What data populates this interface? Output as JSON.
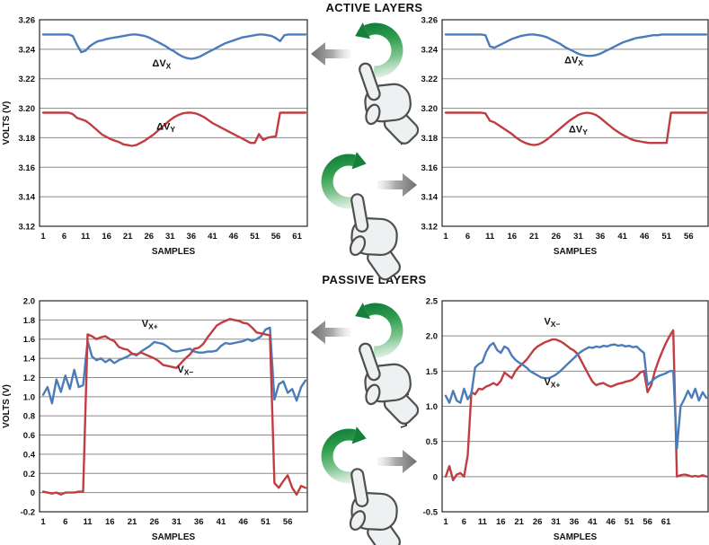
{
  "titles": {
    "active": "ACTIVE LAYERS",
    "passive": "PASSIVE LAYERS"
  },
  "colors": {
    "blue": "#4b7cba",
    "red": "#c03d42",
    "grid": "#8a8a8a",
    "frame": "#262626",
    "text": "#111111",
    "green": "#1d8c43",
    "gray_arrow": "#6e6e6e"
  },
  "gestures": [
    {
      "motion": "rotate-counterclockwise",
      "result_arrow": "left",
      "section": "active"
    },
    {
      "motion": "rotate-clockwise",
      "result_arrow": "right",
      "section": "active"
    },
    {
      "motion": "rotate-counterclockwise",
      "result_arrow": "left",
      "section": "passive"
    },
    {
      "motion": "rotate-clockwise",
      "result_arrow": "right",
      "section": "passive"
    }
  ],
  "chart_data": [
    {
      "id": "active-left",
      "type": "line",
      "section": "ACTIVE LAYERS",
      "xlabel": "SAMPLES",
      "ylabel": "VOLTS (V)",
      "ylim": [
        3.12,
        3.26
      ],
      "grid": "horizontal",
      "legend": "inline-labels",
      "ytick_labels": [
        "3.26",
        "3.24",
        "3.22",
        "3.20",
        "3.18",
        "3.16",
        "3.14",
        "3.12"
      ],
      "ytick_values": [
        3.26,
        3.24,
        3.22,
        3.2,
        3.18,
        3.16,
        3.14,
        3.12
      ],
      "xticks": [
        1,
        6,
        11,
        16,
        21,
        26,
        31,
        36,
        41,
        46,
        51,
        56,
        61
      ],
      "series": [
        {
          "key": "delta-vx",
          "name": "ΔVX",
          "label_base": "ΔV",
          "label_sub": "X",
          "color": "blue",
          "label_at": [
            29,
            3.2285
          ],
          "values": [
            3.25,
            3.25,
            3.25,
            3.25,
            3.25,
            3.25,
            3.25,
            3.249,
            3.243,
            3.238,
            3.239,
            3.242,
            3.244,
            3.2455,
            3.246,
            3.247,
            3.2475,
            3.248,
            3.2485,
            3.249,
            3.2495,
            3.25,
            3.25,
            3.2495,
            3.249,
            3.248,
            3.2465,
            3.245,
            3.2435,
            3.242,
            3.24,
            3.2385,
            3.2365,
            3.235,
            3.234,
            3.2335,
            3.234,
            3.235,
            3.2365,
            3.238,
            3.2395,
            3.241,
            3.2425,
            3.244,
            3.245,
            3.246,
            3.247,
            3.248,
            3.2485,
            3.249,
            3.2495,
            3.25,
            3.25,
            3.2495,
            3.249,
            3.2475,
            3.2455,
            3.2495,
            3.25,
            3.25,
            3.25,
            3.25,
            3.25
          ]
        },
        {
          "key": "delta-vy",
          "name": "ΔVY",
          "label_base": "ΔV",
          "label_sub": "Y",
          "color": "red",
          "label_at": [
            30,
            3.1855
          ],
          "values": [
            3.197,
            3.197,
            3.197,
            3.197,
            3.197,
            3.197,
            3.197,
            3.196,
            3.1935,
            3.1925,
            3.1915,
            3.1895,
            3.187,
            3.1845,
            3.182,
            3.1805,
            3.179,
            3.178,
            3.177,
            3.1755,
            3.175,
            3.1745,
            3.175,
            3.1765,
            3.178,
            3.18,
            3.182,
            3.1845,
            3.187,
            3.1895,
            3.192,
            3.194,
            3.1955,
            3.1965,
            3.197,
            3.197,
            3.1965,
            3.1955,
            3.194,
            3.192,
            3.19,
            3.1885,
            3.187,
            3.1855,
            3.184,
            3.1825,
            3.181,
            3.1795,
            3.178,
            3.1765,
            3.1765,
            3.1825,
            3.1785,
            3.18,
            3.1805,
            3.181,
            3.197,
            3.197,
            3.197,
            3.197,
            3.197,
            3.197,
            3.197
          ]
        }
      ]
    },
    {
      "id": "active-right",
      "type": "line",
      "section": "ACTIVE LAYERS",
      "xlabel": "SAMPLES",
      "ylabel": "VOLTS (V)",
      "ylim": [
        3.12,
        3.26
      ],
      "grid": "horizontal",
      "legend": "inline-labels",
      "ytick_labels": [
        "3.26",
        "3.24",
        "3.22",
        "3.20",
        "3.18",
        "3.16",
        "3.14",
        "3.12"
      ],
      "ytick_values": [
        3.26,
        3.24,
        3.22,
        3.2,
        3.18,
        3.16,
        3.14,
        3.12
      ],
      "xticks": [
        1,
        6,
        11,
        16,
        21,
        26,
        31,
        36,
        41,
        46,
        51,
        56
      ],
      "series": [
        {
          "key": "delta-vx",
          "name": "ΔVX",
          "label_base": "ΔV",
          "label_sub": "X",
          "color": "blue",
          "label_at": [
            30,
            3.2305
          ],
          "values": [
            3.25,
            3.25,
            3.25,
            3.25,
            3.25,
            3.25,
            3.25,
            3.25,
            3.25,
            3.2495,
            3.242,
            3.241,
            3.2425,
            3.244,
            3.2455,
            3.247,
            3.248,
            3.249,
            3.2495,
            3.25,
            3.25,
            3.2495,
            3.249,
            3.248,
            3.2465,
            3.245,
            3.2435,
            3.2415,
            3.24,
            3.2385,
            3.237,
            3.236,
            3.2355,
            3.2355,
            3.236,
            3.237,
            3.2385,
            3.24,
            3.2415,
            3.243,
            3.2445,
            3.2455,
            3.2465,
            3.2475,
            3.248,
            3.2485,
            3.249,
            3.2495,
            3.2495,
            3.25,
            3.25,
            3.25,
            3.25,
            3.25,
            3.25,
            3.25,
            3.25,
            3.25,
            3.25,
            3.25
          ]
        },
        {
          "key": "delta-vy",
          "name": "ΔVY",
          "label_base": "ΔV",
          "label_sub": "Y",
          "color": "red",
          "label_at": [
            31,
            3.1835
          ],
          "values": [
            3.197,
            3.197,
            3.197,
            3.197,
            3.197,
            3.197,
            3.197,
            3.197,
            3.197,
            3.1965,
            3.1915,
            3.1905,
            3.1885,
            3.1865,
            3.1845,
            3.1825,
            3.18,
            3.178,
            3.1765,
            3.1755,
            3.175,
            3.1755,
            3.177,
            3.179,
            3.1815,
            3.184,
            3.1865,
            3.189,
            3.1915,
            3.1935,
            3.1955,
            3.1965,
            3.197,
            3.1965,
            3.1955,
            3.1935,
            3.191,
            3.1885,
            3.186,
            3.184,
            3.182,
            3.1805,
            3.179,
            3.178,
            3.1775,
            3.177,
            3.1765,
            3.1765,
            3.1765,
            3.1765,
            3.1765,
            3.197,
            3.197,
            3.197,
            3.197,
            3.197,
            3.197,
            3.197,
            3.197,
            3.197
          ]
        }
      ]
    },
    {
      "id": "passive-left",
      "type": "line",
      "section": "PASSIVE LAYERS",
      "xlabel": "SAMPLES",
      "ylabel": "VOLTS (V)",
      "ylim": [
        -0.2,
        2.0
      ],
      "grid": "horizontal",
      "legend": "inline-labels",
      "ytick_labels": [
        "2.0",
        "1.8",
        "1.6",
        "1.4",
        "1.2",
        "1.0",
        "0.8",
        "0.6",
        "0.4",
        "0.2",
        "0",
        "-0.2"
      ],
      "ytick_values": [
        2.0,
        1.8,
        1.6,
        1.4,
        1.2,
        1.0,
        0.8,
        0.6,
        0.4,
        0.2,
        0,
        -0.2
      ],
      "xticks": [
        1,
        6,
        11,
        16,
        21,
        26,
        31,
        36,
        41,
        46,
        51,
        56
      ],
      "series": [
        {
          "key": "vx-plus",
          "name": "VX+",
          "label_base": "V",
          "label_sub": "X+",
          "color": "blue",
          "label_at": [
            25,
            1.73
          ],
          "values": [
            1.02,
            1.1,
            0.93,
            1.18,
            1.05,
            1.22,
            1.08,
            1.28,
            1.1,
            1.12,
            1.58,
            1.42,
            1.38,
            1.4,
            1.36,
            1.39,
            1.35,
            1.38,
            1.4,
            1.42,
            1.45,
            1.43,
            1.47,
            1.5,
            1.53,
            1.57,
            1.56,
            1.55,
            1.52,
            1.48,
            1.47,
            1.48,
            1.49,
            1.5,
            1.47,
            1.46,
            1.46,
            1.47,
            1.47,
            1.48,
            1.53,
            1.56,
            1.55,
            1.56,
            1.57,
            1.58,
            1.6,
            1.58,
            1.6,
            1.63,
            1.7,
            1.72,
            0.97,
            1.13,
            1.16,
            1.04,
            1.08,
            0.96,
            1.1,
            1.17
          ]
        },
        {
          "key": "vx-minus",
          "name": "VX−",
          "label_base": "V",
          "label_sub": "X−",
          "color": "red",
          "label_at": [
            33,
            1.25
          ],
          "values": [
            0.01,
            0,
            -0.01,
            0,
            -0.02,
            0,
            0,
            0,
            0.01,
            0.01,
            1.65,
            1.63,
            1.6,
            1.62,
            1.63,
            1.6,
            1.58,
            1.52,
            1.5,
            1.49,
            1.45,
            1.44,
            1.46,
            1.44,
            1.42,
            1.4,
            1.37,
            1.33,
            1.32,
            1.31,
            1.3,
            1.35,
            1.4,
            1.44,
            1.5,
            1.51,
            1.55,
            1.62,
            1.68,
            1.74,
            1.77,
            1.79,
            1.81,
            1.8,
            1.79,
            1.77,
            1.76,
            1.72,
            1.67,
            1.66,
            1.65,
            1.64,
            0.1,
            0.05,
            0.12,
            0.18,
            0.05,
            -0.02,
            0.07,
            0.05
          ]
        }
      ]
    },
    {
      "id": "passive-right",
      "type": "line",
      "section": "PASSIVE LAYERS",
      "xlabel": "SAMPLES",
      "ylabel": "VOLTS (V)",
      "ylim": [
        -0.5,
        2.5
      ],
      "grid": "horizontal",
      "legend": "inline-labels",
      "ytick_labels": [
        "2.5",
        "2.0",
        "1.5",
        "1.0",
        "0.5",
        "0",
        "-0.5"
      ],
      "ytick_values": [
        2.5,
        2.0,
        1.5,
        1.0,
        0.5,
        0,
        -0.5
      ],
      "xticks": [
        1,
        6,
        11,
        16,
        21,
        26,
        31,
        36,
        41,
        46,
        51,
        56,
        61
      ],
      "series": [
        {
          "key": "vx-minus",
          "name": "VX−",
          "label_base": "V",
          "label_sub": "X−",
          "color": "red",
          "label_at": [
            30,
            2.16
          ],
          "values": [
            0,
            0.15,
            -0.05,
            0.03,
            0.05,
            0,
            0.3,
            1.2,
            1.17,
            1.25,
            1.24,
            1.28,
            1.3,
            1.33,
            1.3,
            1.36,
            1.48,
            1.44,
            1.4,
            1.5,
            1.56,
            1.61,
            1.66,
            1.73,
            1.8,
            1.85,
            1.88,
            1.91,
            1.93,
            1.95,
            1.95,
            1.93,
            1.9,
            1.86,
            1.82,
            1.79,
            1.74,
            1.64,
            1.54,
            1.44,
            1.35,
            1.3,
            1.32,
            1.33,
            1.3,
            1.28,
            1.3,
            1.32,
            1.33,
            1.35,
            1.36,
            1.38,
            1.42,
            1.48,
            1.5,
            1.2,
            1.3,
            1.5,
            1.65,
            1.78,
            1.9,
            2.0,
            2.08,
            0,
            0.02,
            0.03,
            0.02,
            0,
            0.01,
            0,
            0.02,
            0
          ]
        },
        {
          "key": "vx-plus",
          "name": "VX+",
          "label_base": "V",
          "label_sub": "X+",
          "color": "blue",
          "label_at": [
            30,
            1.3
          ],
          "values": [
            1.15,
            1.05,
            1.22,
            1.08,
            1.05,
            1.25,
            1.1,
            1.18,
            1.55,
            1.6,
            1.63,
            1.77,
            1.86,
            1.9,
            1.8,
            1.76,
            1.85,
            1.82,
            1.72,
            1.66,
            1.62,
            1.59,
            1.55,
            1.5,
            1.47,
            1.44,
            1.41,
            1.4,
            1.4,
            1.42,
            1.45,
            1.49,
            1.54,
            1.59,
            1.64,
            1.69,
            1.74,
            1.78,
            1.81,
            1.84,
            1.83,
            1.85,
            1.84,
            1.86,
            1.85,
            1.87,
            1.88,
            1.86,
            1.87,
            1.85,
            1.86,
            1.84,
            1.85,
            1.8,
            1.76,
            1.3,
            1.35,
            1.4,
            1.43,
            1.45,
            1.47,
            1.5,
            1.5,
            0.4,
            1.0,
            1.1,
            1.22,
            1.12,
            1.25,
            1.08,
            1.2,
            1.12
          ]
        }
      ]
    }
  ]
}
